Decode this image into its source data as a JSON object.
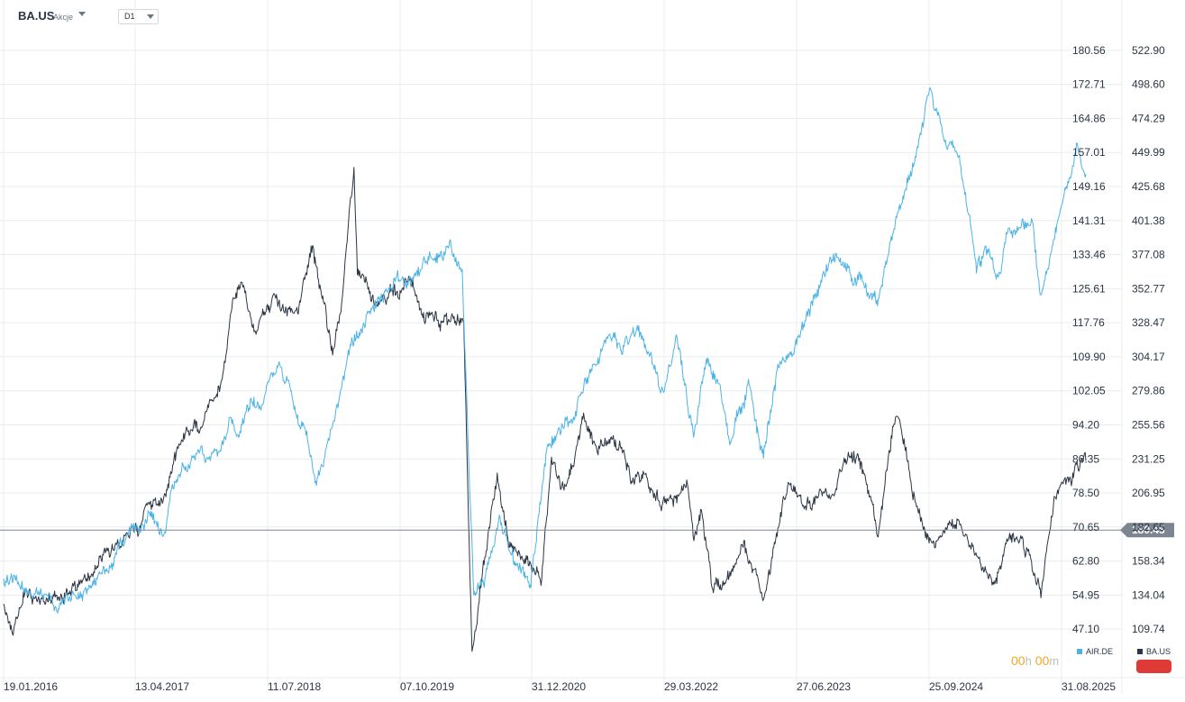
{
  "header": {
    "symbol": "BA.US",
    "asset_type": "Akcje",
    "timeframe": "D1"
  },
  "countdown": {
    "hours": "00",
    "hours_unit": "h",
    "minutes": "00",
    "minutes_unit": "m"
  },
  "legend": [
    {
      "name": "AIR.DE",
      "color": "#4db3e6"
    },
    {
      "name": "BA.US",
      "color": "#2b3543"
    }
  ],
  "colors": {
    "air": "#4db3e6",
    "ba": "#2b3543",
    "grid": "#e9ecef",
    "price_line": "#7d8690",
    "price_tag": "#7d8690",
    "badge": "#e03a37"
  },
  "chart_data": {
    "type": "line",
    "x_ticks": [
      "19.01.2016",
      "13.04.2017",
      "11.07.2018",
      "07.10.2019",
      "31.12.2020",
      "29.03.2022",
      "27.06.2023",
      "25.09.2024",
      "31.08.2025"
    ],
    "left_axis_ticks": [
      "180.56",
      "172.71",
      "164.86",
      "157.01",
      "149.16",
      "141.31",
      "133.46",
      "125.61",
      "117.76",
      "109.90",
      "102.05",
      "94.20",
      "86.35",
      "78.50",
      "70.65",
      "62.80",
      "54.95",
      "47.10"
    ],
    "right_axis_ticks": [
      "522.90",
      "498.60",
      "474.29",
      "449.99",
      "425.68",
      "401.38",
      "377.08",
      "352.77",
      "328.47",
      "304.17",
      "279.86",
      "255.56",
      "231.25",
      "206.95",
      "182.65",
      "158.34",
      "134.04",
      "109.74"
    ],
    "current_price_label": "180.45",
    "current_price": 180.45,
    "left_axis_range": [
      43.18,
      184.49
    ],
    "right_axis_range": [
      97.59,
      535.05
    ],
    "x_range": [
      "2016-01-19",
      "2025-08-31"
    ],
    "grid": true,
    "series": [
      {
        "name": "AIR.DE",
        "axis": "left",
        "points": [
          [
            "2016-01-19",
            58
          ],
          [
            "2016-02-20",
            59
          ],
          [
            "2016-04-10",
            56
          ],
          [
            "2016-06-01",
            55
          ],
          [
            "2016-06-27",
            52
          ],
          [
            "2016-08-10",
            53
          ],
          [
            "2016-10-01",
            55
          ],
          [
            "2016-11-20",
            58
          ],
          [
            "2017-01-01",
            63
          ],
          [
            "2017-02-01",
            68
          ],
          [
            "2017-04-01",
            70
          ],
          [
            "2017-05-15",
            74
          ],
          [
            "2017-06-25",
            70
          ],
          [
            "2017-07-20",
            80
          ],
          [
            "2017-09-01",
            84
          ],
          [
            "2017-10-15",
            88
          ],
          [
            "2017-11-15",
            86
          ],
          [
            "2017-12-31",
            90
          ],
          [
            "2018-01-20",
            96
          ],
          [
            "2018-02-15",
            92
          ],
          [
            "2018-04-01",
            100
          ],
          [
            "2018-05-01",
            98
          ],
          [
            "2018-06-01",
            105
          ],
          [
            "2018-07-01",
            108
          ],
          [
            "2018-08-01",
            104
          ],
          [
            "2018-09-01",
            96
          ],
          [
            "2018-10-01",
            92
          ],
          [
            "2018-10-28",
            80
          ],
          [
            "2018-12-01",
            88
          ],
          [
            "2019-01-10",
            100
          ],
          [
            "2019-02-15",
            112
          ],
          [
            "2019-04-01",
            117
          ],
          [
            "2019-05-15",
            124
          ],
          [
            "2019-07-10",
            128
          ],
          [
            "2019-09-01",
            127
          ],
          [
            "2019-11-01",
            132
          ],
          [
            "2020-01-10",
            135
          ],
          [
            "2020-02-15",
            128
          ],
          [
            "2020-03-10",
            80
          ],
          [
            "2020-03-24",
            55
          ],
          [
            "2020-05-01",
            60
          ],
          [
            "2020-06-15",
            72
          ],
          [
            "2020-08-01",
            63
          ],
          [
            "2020-09-25",
            58
          ],
          [
            "2020-11-15",
            88
          ],
          [
            "2021-01-01",
            94
          ],
          [
            "2021-02-15",
            97
          ],
          [
            "2021-03-15",
            103
          ],
          [
            "2021-05-01",
            108
          ],
          [
            "2021-06-01",
            116
          ],
          [
            "2021-07-15",
            112
          ],
          [
            "2021-09-01",
            115
          ],
          [
            "2021-10-01",
            112
          ],
          [
            "2021-12-01",
            100
          ],
          [
            "2022-01-10",
            115
          ],
          [
            "2022-03-07",
            92
          ],
          [
            "2022-04-20",
            110
          ],
          [
            "2022-06-01",
            102
          ],
          [
            "2022-07-05",
            90
          ],
          [
            "2022-09-01",
            104
          ],
          [
            "2022-09-28",
            92
          ],
          [
            "2022-10-20",
            87
          ],
          [
            "2022-12-01",
            106
          ],
          [
            "2023-01-20",
            112
          ],
          [
            "2023-03-01",
            118
          ],
          [
            "2023-05-01",
            128
          ],
          [
            "2023-06-15",
            134
          ],
          [
            "2023-08-10",
            128
          ],
          [
            "2023-10-25",
            122
          ],
          [
            "2023-12-15",
            138
          ],
          [
            "2024-01-20",
            148
          ],
          [
            "2024-02-20",
            155
          ],
          [
            "2024-04-10",
            172
          ],
          [
            "2024-06-01",
            160
          ],
          [
            "2024-07-10",
            158
          ],
          [
            "2024-08-10",
            145
          ],
          [
            "2024-09-10",
            130
          ],
          [
            "2024-10-15",
            135
          ],
          [
            "2024-11-20",
            128
          ],
          [
            "2024-12-20",
            140
          ],
          [
            "2025-02-05",
            140
          ],
          [
            "2025-03-10",
            140
          ],
          [
            "2025-04-07",
            122
          ],
          [
            "2025-05-20",
            138
          ],
          [
            "2025-07-01",
            148
          ],
          [
            "2025-08-01",
            158
          ],
          [
            "2025-08-31",
            152
          ]
        ]
      },
      {
        "name": "BA.US",
        "axis": "right",
        "points": [
          [
            "2016-01-19",
            130
          ],
          [
            "2016-02-10",
            108
          ],
          [
            "2016-04-01",
            135
          ],
          [
            "2016-06-01",
            130
          ],
          [
            "2016-08-01",
            133
          ],
          [
            "2016-10-01",
            140
          ],
          [
            "2016-12-01",
            158
          ],
          [
            "2017-02-01",
            172
          ],
          [
            "2017-04-01",
            181
          ],
          [
            "2017-05-10",
            198
          ],
          [
            "2017-07-01",
            205
          ],
          [
            "2017-07-25",
            235
          ],
          [
            "2017-09-01",
            250
          ],
          [
            "2017-10-20",
            256
          ],
          [
            "2017-12-31",
            295
          ],
          [
            "2018-01-31",
            345
          ],
          [
            "2018-03-01",
            355
          ],
          [
            "2018-04-15",
            325
          ],
          [
            "2018-05-20",
            340
          ],
          [
            "2018-06-20",
            345
          ],
          [
            "2018-07-20",
            345
          ],
          [
            "2018-08-30",
            330
          ],
          [
            "2018-10-15",
            385
          ],
          [
            "2018-10-30",
            368
          ],
          [
            "2018-12-24",
            305
          ],
          [
            "2019-01-20",
            340
          ],
          [
            "2019-03-01",
            440
          ],
          [
            "2019-03-12",
            370
          ],
          [
            "2019-05-15",
            340
          ],
          [
            "2019-07-15",
            350
          ],
          [
            "2019-09-01",
            360
          ],
          [
            "2019-10-15",
            330
          ],
          [
            "2019-12-15",
            330
          ],
          [
            "2020-02-20",
            330
          ],
          [
            "2020-03-18",
            95
          ],
          [
            "2020-04-15",
            140
          ],
          [
            "2020-06-08",
            220
          ],
          [
            "2020-07-15",
            170
          ],
          [
            "2020-09-10",
            160
          ],
          [
            "2020-10-28",
            142
          ],
          [
            "2020-12-01",
            230
          ],
          [
            "2021-01-15",
            206
          ],
          [
            "2021-03-15",
            260
          ],
          [
            "2021-05-01",
            238
          ],
          [
            "2021-06-15",
            250
          ],
          [
            "2021-08-20",
            215
          ],
          [
            "2021-10-01",
            222
          ],
          [
            "2021-11-20",
            200
          ],
          [
            "2022-01-05",
            205
          ],
          [
            "2022-02-15",
            210
          ],
          [
            "2022-03-08",
            170
          ],
          [
            "2022-04-01",
            190
          ],
          [
            "2022-05-10",
            135
          ],
          [
            "2022-06-15",
            140
          ],
          [
            "2022-08-01",
            165
          ],
          [
            "2022-08-15",
            170
          ],
          [
            "2022-10-20",
            130
          ],
          [
            "2022-12-01",
            180
          ],
          [
            "2023-01-10",
            215
          ],
          [
            "2023-03-01",
            200
          ],
          [
            "2023-04-15",
            207
          ],
          [
            "2023-06-01",
            207
          ],
          [
            "2023-07-31",
            236
          ],
          [
            "2023-09-01",
            225
          ],
          [
            "2023-10-27",
            180
          ],
          [
            "2023-12-15",
            255
          ],
          [
            "2024-01-03",
            260
          ],
          [
            "2024-02-15",
            205
          ],
          [
            "2024-03-15",
            190
          ],
          [
            "2024-04-25",
            170
          ],
          [
            "2024-06-01",
            180
          ],
          [
            "2024-07-20",
            185
          ],
          [
            "2024-08-01",
            175
          ],
          [
            "2024-09-15",
            160
          ],
          [
            "2024-10-15",
            150
          ],
          [
            "2024-11-15",
            145
          ],
          [
            "2024-12-20",
            175
          ],
          [
            "2025-02-01",
            175
          ],
          [
            "2025-03-10",
            155
          ],
          [
            "2025-04-07",
            135
          ],
          [
            "2025-05-20",
            200
          ],
          [
            "2025-07-15",
            215
          ],
          [
            "2025-08-20",
            230
          ],
          [
            "2025-08-31",
            230
          ]
        ]
      }
    ]
  }
}
